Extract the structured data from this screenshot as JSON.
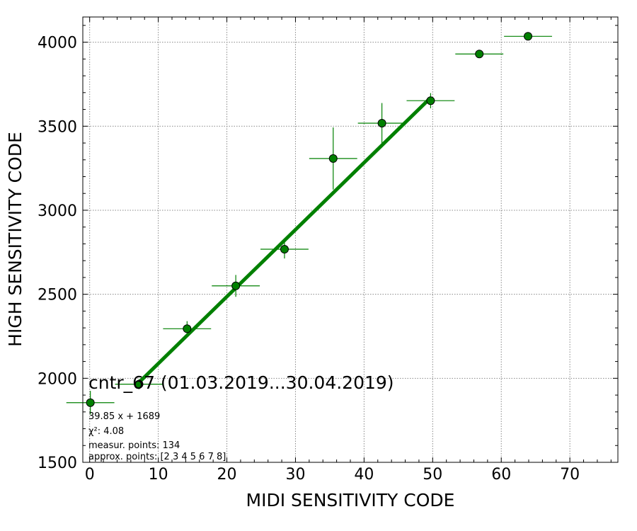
{
  "chart_data": {
    "type": "scatter",
    "title": "cntr_67 (01.03.2019...30.04.2019)",
    "xlabel": "MIDI SENSITIVITY CODE",
    "ylabel": "HIGH SENSITIVITY CODE",
    "xlim": [
      -1,
      77
    ],
    "ylim": [
      1500,
      4150
    ],
    "xticks": [
      0,
      10,
      20,
      30,
      40,
      50,
      60,
      70
    ],
    "yticks": [
      1500,
      2000,
      2500,
      3000,
      3500,
      4000
    ],
    "grid": true,
    "point_color": "#008000",
    "line_color": "#008000",
    "points": [
      {
        "x": 0.1,
        "y": 1855,
        "xerr": 3.5,
        "yerr": 70
      },
      {
        "x": 7.2,
        "y": 1965,
        "xerr": 3.5,
        "yerr": 30
      },
      {
        "x": 14.2,
        "y": 2295,
        "xerr": 3.5,
        "yerr": 45
      },
      {
        "x": 21.3,
        "y": 2550,
        "xerr": 3.5,
        "yerr": 65
      },
      {
        "x": 28.4,
        "y": 2768,
        "xerr": 3.5,
        "yerr": 55
      },
      {
        "x": 35.5,
        "y": 3308,
        "xerr": 3.5,
        "yerr": 185
      },
      {
        "x": 42.6,
        "y": 3518,
        "xerr": 3.5,
        "yerr": 120
      },
      {
        "x": 49.7,
        "y": 3652,
        "xerr": 3.5,
        "yerr": 45
      },
      {
        "x": 56.8,
        "y": 3930,
        "xerr": 3.5,
        "yerr": 0
      },
      {
        "x": 63.9,
        "y": 4035,
        "xerr": 3.5,
        "yerr": 0
      }
    ],
    "fit": {
      "slope": 39.85,
      "intercept": 1689,
      "x_range": [
        7.2,
        49.7
      ]
    },
    "annotations": [
      "39.85 x + 1689",
      "χ²: 4.08",
      "measur. points: 134",
      "approx. points: [2 3 4 5 6 7 8]"
    ]
  }
}
